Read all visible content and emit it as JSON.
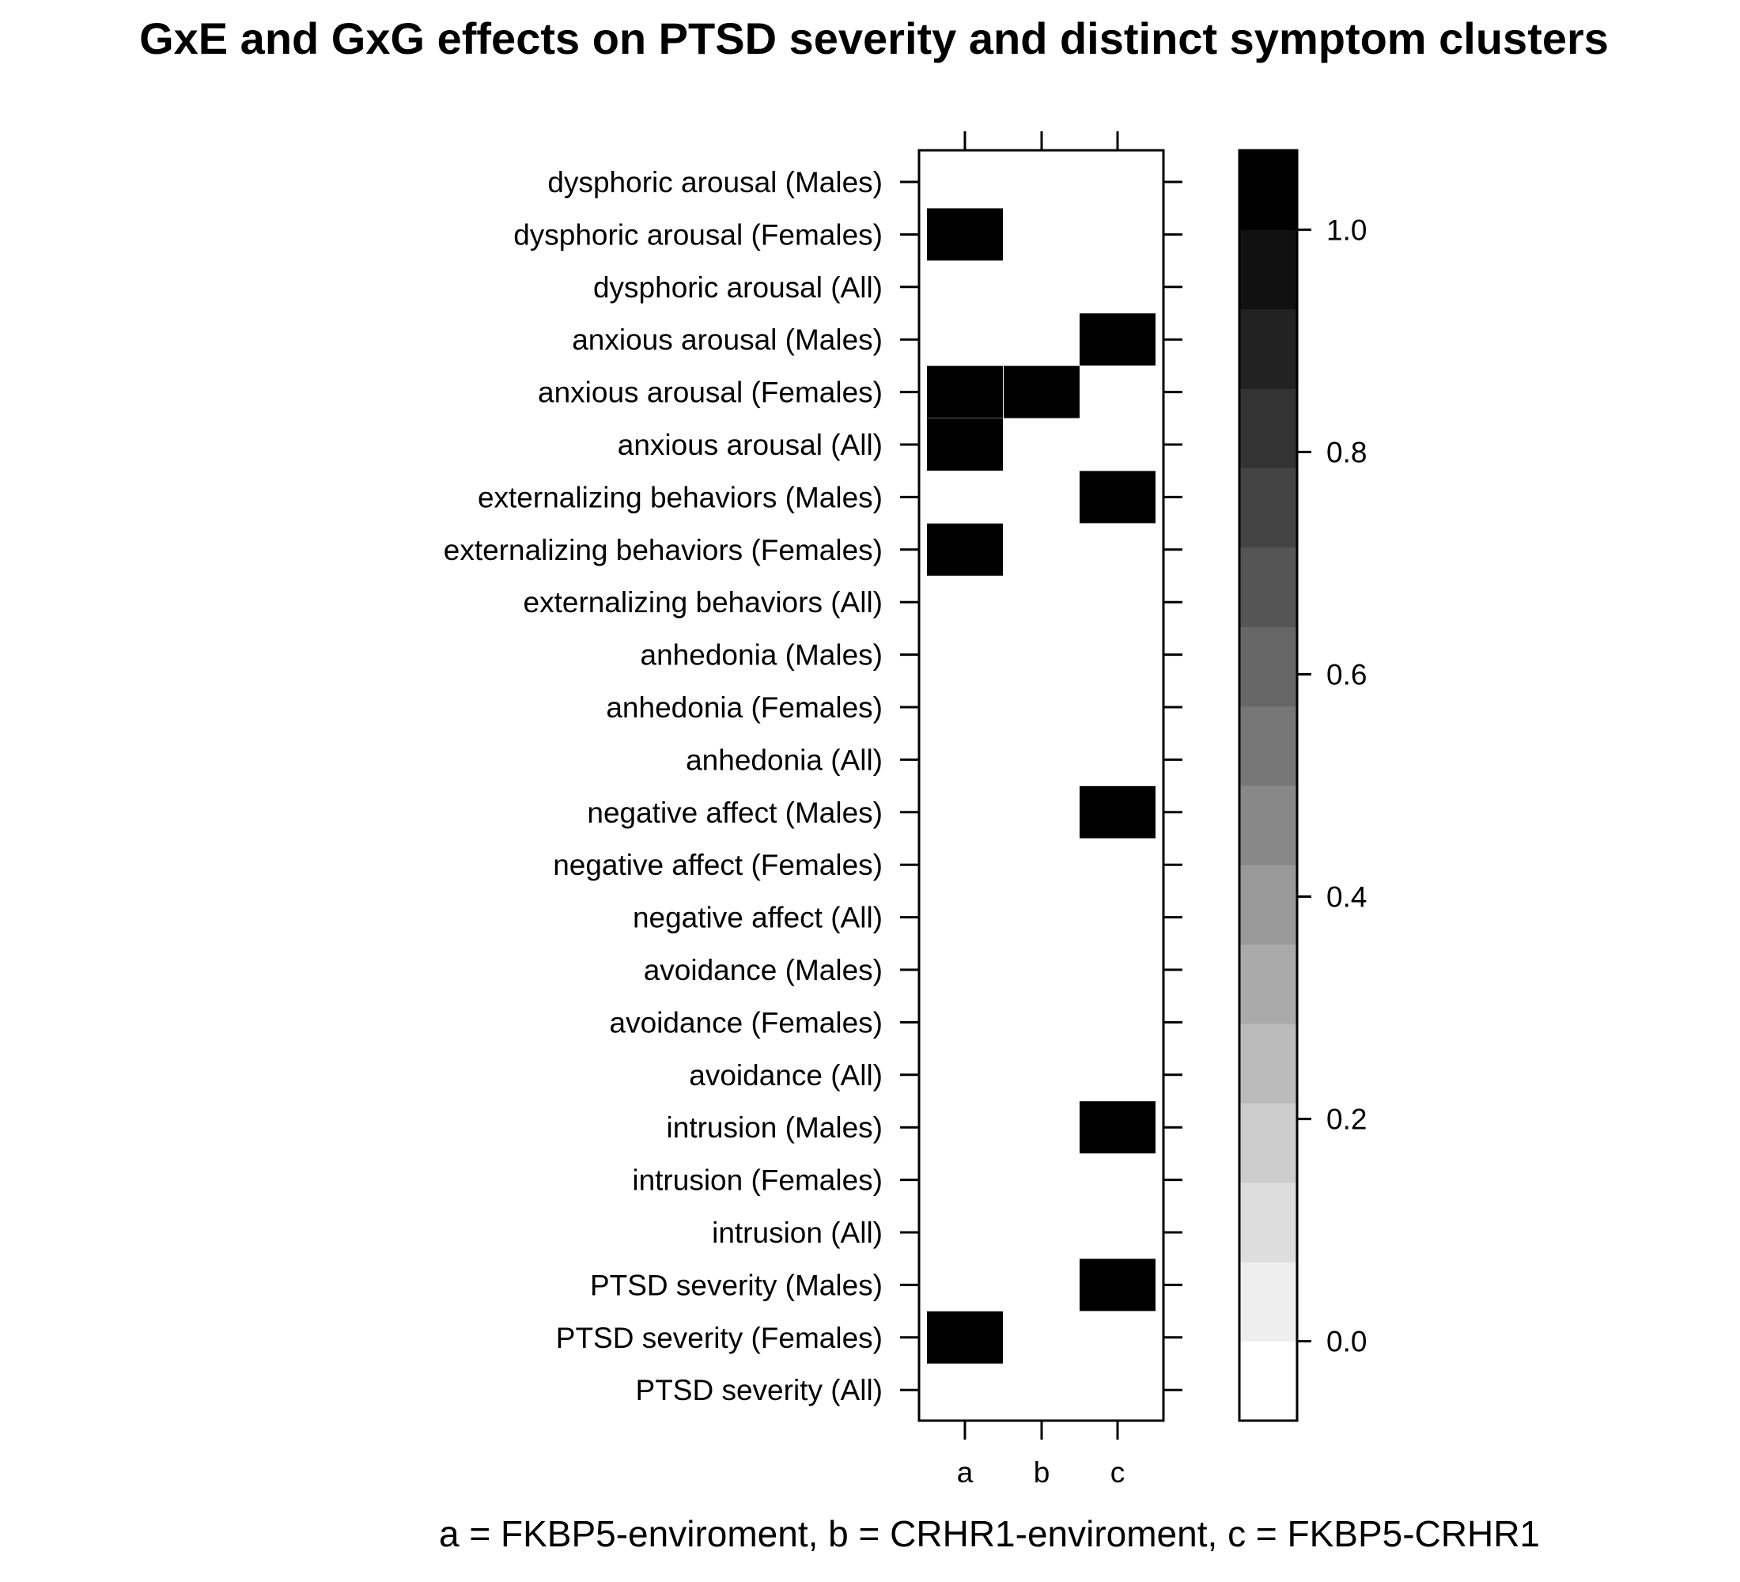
{
  "chart_data": {
    "type": "heatmap",
    "title": "GxE and GxG effects on PTSD severity and distinct symptom clusters",
    "caption": "a = FKBP5-enviroment, b = CRHR1-enviroment, c = FKBP5-CRHR1",
    "xlabel": "",
    "ylabel": "",
    "x_categories": [
      "a",
      "b",
      "c"
    ],
    "y_categories": [
      "dysphoric arousal (Males)",
      "dysphoric arousal (Females)",
      "dysphoric arousal (All)",
      "anxious arousal (Males)",
      "anxious arousal (Females)",
      "anxious arousal (All)",
      "externalizing behaviors (Males)",
      "externalizing behaviors (Females)",
      "externalizing behaviors (All)",
      "anhedonia (Males)",
      "anhedonia (Females)",
      "anhedonia (All)",
      "negative affect (Males)",
      "negative affect (Females)",
      "negative affect (All)",
      "avoidance (Males)",
      "avoidance (Females)",
      "avoidance (All)",
      "intrusion (Males)",
      "intrusion (Females)",
      "intrusion (All)",
      "PTSD severity (Males)",
      "PTSD severity (Females)",
      "PTSD severity (All)"
    ],
    "values": [
      [
        0,
        0,
        0
      ],
      [
        1,
        0,
        0
      ],
      [
        0,
        0,
        0
      ],
      [
        0,
        0,
        1
      ],
      [
        1,
        1,
        0
      ],
      [
        1,
        0,
        0
      ],
      [
        0,
        0,
        1
      ],
      [
        1,
        0,
        0
      ],
      [
        0,
        0,
        0
      ],
      [
        0,
        0,
        0
      ],
      [
        0,
        0,
        0
      ],
      [
        0,
        0,
        0
      ],
      [
        0,
        0,
        1
      ],
      [
        0,
        0,
        0
      ],
      [
        0,
        0,
        0
      ],
      [
        0,
        0,
        0
      ],
      [
        0,
        0,
        0
      ],
      [
        0,
        0,
        0
      ],
      [
        0,
        0,
        1
      ],
      [
        0,
        0,
        0
      ],
      [
        0,
        0,
        0
      ],
      [
        0,
        0,
        1
      ],
      [
        1,
        0,
        0
      ],
      [
        0,
        0,
        0
      ]
    ],
    "colorbar": {
      "range": [
        -0.0714,
        1.0714
      ],
      "ticks": [
        0.0,
        0.2,
        0.4,
        0.6,
        0.8,
        1.0
      ],
      "tick_labels": [
        "0.0",
        "0.2",
        "0.4",
        "0.6",
        "0.8",
        "1.0"
      ],
      "levels": 16,
      "colors": [
        "#ffffff",
        "#eeeeee",
        "#dddddd",
        "#cccccc",
        "#bbbbbb",
        "#aaaaaa",
        "#999999",
        "#888888",
        "#777777",
        "#666666",
        "#555555",
        "#444444",
        "#333333",
        "#222222",
        "#111111",
        "#000000"
      ]
    },
    "grid": false,
    "legend": "right"
  }
}
